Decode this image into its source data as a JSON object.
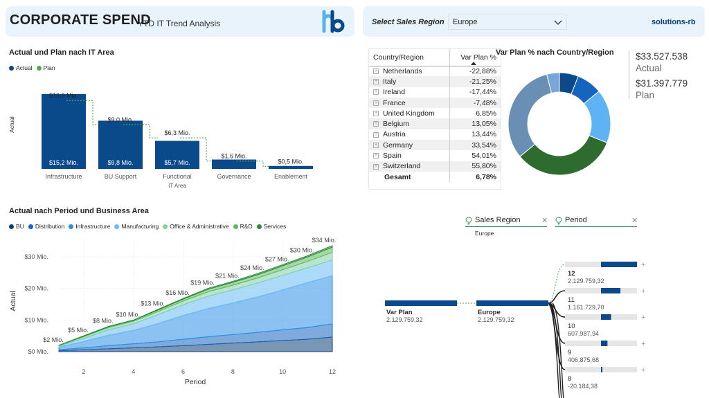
{
  "header": {
    "title": "CORPORATE SPEND",
    "subtitle": "YTD IT Trend Analysis",
    "region_label": "Select Sales Region",
    "region_value": "Europe",
    "brand": "solutions-rb"
  },
  "colors": {
    "actual": "#0b4a8a",
    "plan": "#4caf50",
    "header_bg": "#e8f3fb"
  },
  "waterfall": {
    "title": "Actual und Plan nach IT Area",
    "legend": [
      "Actual",
      "Plan"
    ],
    "ylabel": "Actual",
    "bars": [
      {
        "category": "Infrastructure",
        "plan_label": "$13,9 Mio.",
        "actual_label": "$15,2 Mio.",
        "actual": 15.2,
        "plan": 13.9
      },
      {
        "category": "BU Support",
        "plan_label": "$9,0 Mio.",
        "actual_label": "$9,8 Mio.",
        "actual": 9.8,
        "plan": 9.0
      },
      {
        "category": "Functional IT Area",
        "plan_label": "$6,3 Mio.",
        "actual_label": "$5,7 Mio.",
        "actual": 5.7,
        "plan": 6.3
      },
      {
        "category": "Governance",
        "plan_label": "$1,6 Mio.",
        "actual_label": "",
        "actual": 1.9,
        "plan": 1.6
      },
      {
        "category": "Enablement",
        "plan_label": "$0,5 Mio.",
        "actual_label": "",
        "actual": 0.6,
        "plan": 0.5
      }
    ]
  },
  "table": {
    "col1": "Country/Region",
    "col2": "Var Plan %",
    "rows": [
      {
        "country": "Netherlands",
        "value": "-22,88%"
      },
      {
        "country": "Italy",
        "value": "-21,25%"
      },
      {
        "country": "Ireland",
        "value": "-17,44%"
      },
      {
        "country": "France",
        "value": "-7,48%"
      },
      {
        "country": "United Kingdom",
        "value": "6,85%"
      },
      {
        "country": "Belgium",
        "value": "13,05%"
      },
      {
        "country": "Austria",
        "value": "13,44%"
      },
      {
        "country": "Germany",
        "value": "33,54%"
      },
      {
        "country": "Spain",
        "value": "54,01%"
      },
      {
        "country": "Switzerland",
        "value": "55,80%"
      }
    ],
    "total_label": "Gesamt",
    "total_value": "6,78%"
  },
  "donut": {
    "title": "Var Plan % nach Country/Region",
    "slices": [
      {
        "value": 6,
        "color": "#0b4a8a"
      },
      {
        "value": 8,
        "color": "#1565c0"
      },
      {
        "value": 17,
        "color": "#5eb3f5"
      },
      {
        "value": 33,
        "color": "#2e6b2e"
      },
      {
        "value": 32,
        "color": "#6a8fb5"
      },
      {
        "value": 4,
        "color": "#7aa7d8"
      }
    ]
  },
  "kpi": {
    "actual_value": "$33.527.538",
    "actual_label": "Actual",
    "plan_value": "$31.397.779",
    "plan_label": "Plan"
  },
  "area_chart": {
    "title": "Actual nach Period und Business Area",
    "legend": [
      {
        "name": "BU",
        "color": "#0b3f78"
      },
      {
        "name": "Distribution",
        "color": "#1565c0"
      },
      {
        "name": "Infrastructure",
        "color": "#2b8fe8"
      },
      {
        "name": "Manufacturing",
        "color": "#6cbcf5"
      },
      {
        "name": "Office & Administrative",
        "color": "#7fcfa8"
      },
      {
        "name": "R&D",
        "color": "#5cb85c"
      },
      {
        "name": "Services",
        "color": "#2e8b3c"
      }
    ],
    "xlabel": "Period",
    "ylabel": "Actual",
    "yticks": [
      "$0 Mio.",
      "$10 Mio.",
      "$20 Mio.",
      "$30 Mio."
    ],
    "xticks": [
      "2",
      "4",
      "6",
      "8",
      "10",
      "12"
    ],
    "total_labels": [
      "$2 Mio.",
      "$5 Mio.",
      "$8 Mio.",
      "$10 Mio.",
      "$13 Mio.",
      "$16 Mio.",
      "$19 Mio.",
      "$21 Mio.",
      "$24 Mio.",
      "$27 Mio.",
      "$30 Mio.",
      "$34 Mio."
    ]
  },
  "chart_data": {
    "type": "area",
    "x": [
      1,
      2,
      3,
      4,
      5,
      6,
      7,
      8,
      9,
      10,
      11,
      12
    ],
    "ylim": [
      0,
      35
    ],
    "series": [
      {
        "name": "BU",
        "values": [
          0.3,
          0.6,
          0.9,
          1.2,
          1.5,
          1.9,
          2.3,
          2.7,
          3.1,
          3.5,
          3.9,
          4.6
        ]
      },
      {
        "name": "Distribution",
        "values": [
          0.3,
          0.6,
          1.0,
          1.3,
          1.6,
          2.0,
          2.4,
          2.7,
          3.0,
          3.4,
          3.7,
          4.2
        ]
      },
      {
        "name": "Infrastructure",
        "values": [
          0.8,
          2.0,
          3.3,
          4.2,
          5.8,
          7.5,
          8.9,
          10.0,
          11.2,
          12.6,
          14.2,
          15.2
        ]
      },
      {
        "name": "Manufacturing",
        "values": [
          0.3,
          1.0,
          1.7,
          2.1,
          2.8,
          3.4,
          3.9,
          4.1,
          4.4,
          4.6,
          4.7,
          4.9
        ]
      },
      {
        "name": "Office & Administrative",
        "values": [
          0.2,
          0.5,
          0.7,
          0.8,
          1.0,
          1.2,
          1.4,
          1.5,
          1.6,
          1.8,
          2.0,
          2.5
        ]
      },
      {
        "name": "R&D",
        "values": [
          0.1,
          0.2,
          0.3,
          0.3,
          0.5,
          0.6,
          0.8,
          0.9,
          1.0,
          1.2,
          1.4,
          1.6
        ]
      },
      {
        "name": "Services",
        "values": [
          0.0,
          0.1,
          0.1,
          0.1,
          0.2,
          0.2,
          0.3,
          0.3,
          0.4,
          0.4,
          0.4,
          0.5
        ]
      }
    ]
  },
  "decomp": {
    "slicer1": "Sales Region",
    "slicer1_value": "Europe",
    "slicer2": "Period",
    "root_label": "Var Plan",
    "root_value": "2.129.759,32",
    "level1_label": "Europe",
    "level1_value": "2.129.759,32",
    "nodes": [
      {
        "label": "12",
        "value": "2.129.759,32",
        "fill": 0.5
      },
      {
        "label": "11",
        "value": "1.161.729,70",
        "fill": 0.27
      },
      {
        "label": "10",
        "value": "607.987,94",
        "fill": 0.14
      },
      {
        "label": "9",
        "value": "406.875,68",
        "fill": 0.09
      },
      {
        "label": "8",
        "value": "-20.184,38",
        "fill": 0.01
      }
    ],
    "plus": "+"
  }
}
